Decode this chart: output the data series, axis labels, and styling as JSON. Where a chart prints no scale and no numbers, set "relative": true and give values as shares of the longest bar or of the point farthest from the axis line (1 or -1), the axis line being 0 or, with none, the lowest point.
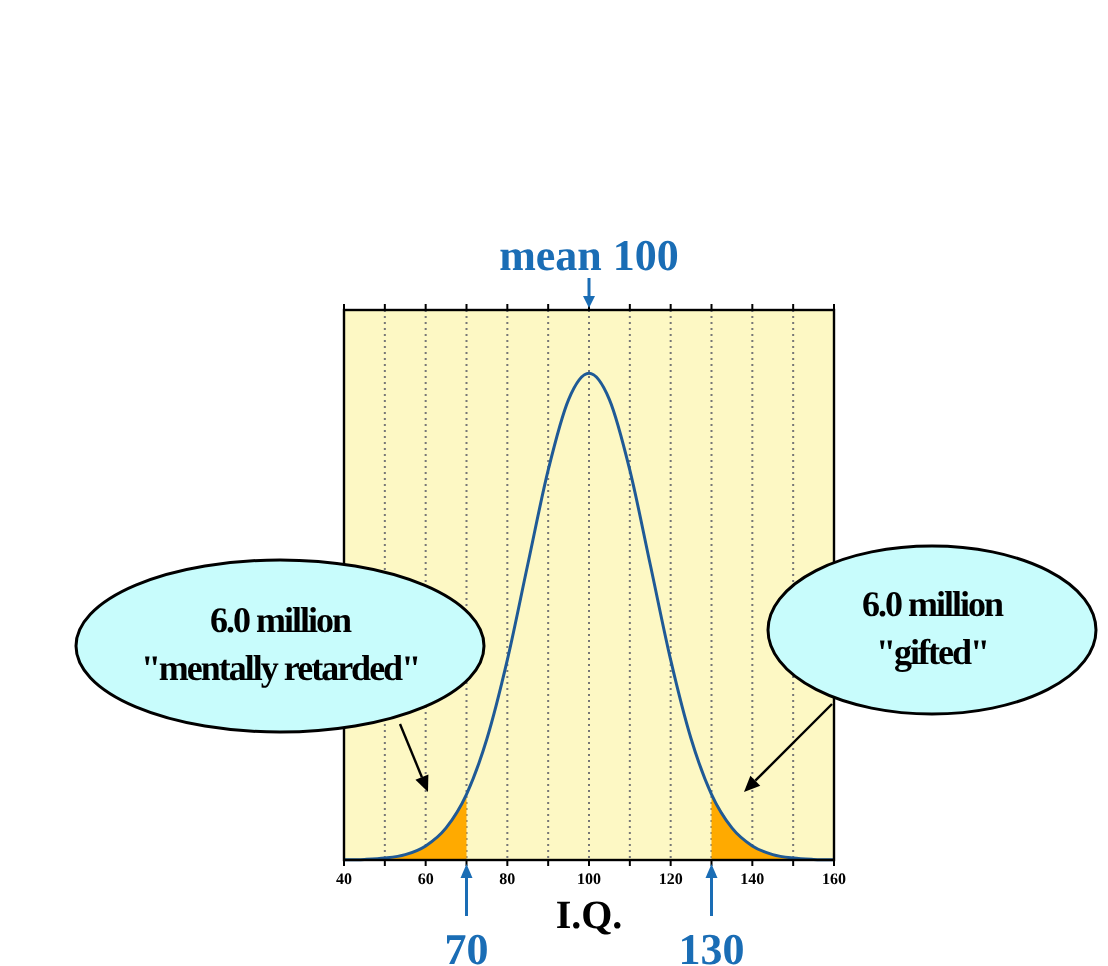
{
  "chart_data": {
    "type": "line",
    "relative": true,
    "xlabel": "I.Q.",
    "xlim": [
      40,
      160
    ],
    "xticks": [
      40,
      {
        "value": 50,
        "label": null
      },
      60,
      {
        "value": 70,
        "label": null
      },
      80,
      {
        "value": 90,
        "label": null
      },
      100,
      {
        "value": 110,
        "label": null
      },
      120,
      {
        "value": 130,
        "label": null
      },
      140,
      {
        "value": 150,
        "label": null
      },
      160
    ],
    "grid": "x",
    "tick_labels": "x",
    "series": [
      {
        "type": "area",
        "color": "#ffaa00",
        "x": [
          40,
          45,
          50,
          55,
          60,
          65,
          70
        ],
        "values": [
          0.0003,
          0.0012,
          0.0039,
          0.011,
          0.029,
          0.066,
          0.135
        ]
      },
      {
        "type": "area",
        "color": "#ffaa00",
        "x": [
          130,
          135,
          140,
          145,
          150,
          155,
          160
        ],
        "values": [
          0.135,
          0.066,
          0.029,
          0.011,
          0.0039,
          0.0012,
          0.0003
        ]
      },
      {
        "color": "#1f5a96",
        "x": [
          40,
          45,
          50,
          55,
          60,
          65,
          70,
          75,
          80,
          85,
          90,
          95,
          100,
          105,
          110,
          115,
          120,
          125,
          130,
          135,
          140,
          145,
          150,
          155,
          160
        ],
        "values": [
          0.0003,
          0.0012,
          0.0039,
          0.011,
          0.029,
          0.066,
          0.135,
          0.249,
          0.411,
          0.607,
          0.801,
          0.946,
          1,
          0.946,
          0.801,
          0.607,
          0.411,
          0.249,
          0.135,
          0.066,
          0.029,
          0.011,
          0.0039,
          0.0012,
          0.0003
        ]
      }
    ],
    "ref_lines": [
      {
        "axis": "x",
        "value": 100,
        "label": "mean 100",
        "color": "#1a6db5"
      },
      {
        "axis": "x",
        "value": 70,
        "label": "70",
        "color": "#1a6db5"
      },
      {
        "axis": "x",
        "value": 130,
        "label": "130",
        "color": "#1a6db5"
      }
    ],
    "annotations": [
      "6.0 million\n\"mentally retarded\"",
      "6.0 million\n\"gifted\""
    ]
  }
}
